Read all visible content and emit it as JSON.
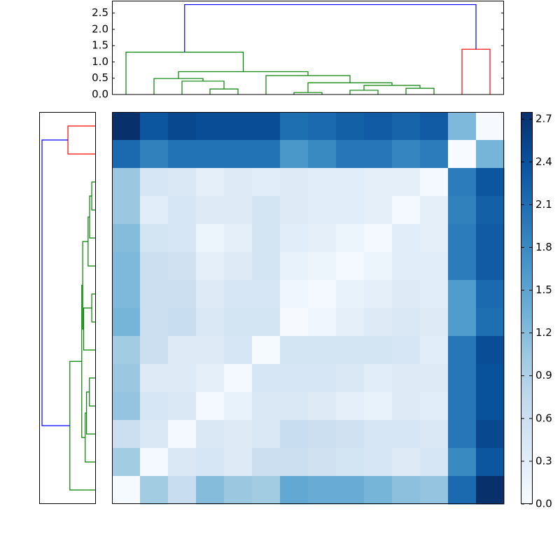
{
  "chart_data": {
    "type": "clustermap",
    "heatmap": {
      "colormap": "Blues",
      "vlim": [
        0,
        2.75
      ],
      "values": [
        [
          2.75,
          2.35,
          2.5,
          2.45,
          2.45,
          2.45,
          2.1,
          2.15,
          2.25,
          2.3,
          2.2,
          2.3,
          1.25,
          0.02
        ],
        [
          2.15,
          1.9,
          2.05,
          2.05,
          2.05,
          2.05,
          1.65,
          1.8,
          2.0,
          2.0,
          1.85,
          1.95,
          0.0,
          1.3
        ],
        [
          1.05,
          0.45,
          0.4,
          0.25,
          0.35,
          0.3,
          0.35,
          0.3,
          0.3,
          0.25,
          0.25,
          0.05,
          1.95,
          2.35
        ],
        [
          1.05,
          0.3,
          0.45,
          0.35,
          0.35,
          0.5,
          0.35,
          0.3,
          0.3,
          0.25,
          0.05,
          0.25,
          1.9,
          2.25
        ],
        [
          1.2,
          0.5,
          0.45,
          0.15,
          0.25,
          0.5,
          0.3,
          0.25,
          0.15,
          0.05,
          0.3,
          0.25,
          1.95,
          2.3
        ],
        [
          1.25,
          0.6,
          0.55,
          0.25,
          0.35,
          0.5,
          0.2,
          0.15,
          0.05,
          0.15,
          0.3,
          0.3,
          1.95,
          2.3
        ],
        [
          1.25,
          0.6,
          0.6,
          0.35,
          0.45,
          0.45,
          0.1,
          0.05,
          0.2,
          0.25,
          0.35,
          0.3,
          1.6,
          2.15
        ],
        [
          1.3,
          0.6,
          0.65,
          0.4,
          0.5,
          0.5,
          0.02,
          0.1,
          0.25,
          0.35,
          0.4,
          0.35,
          1.6,
          2.1
        ],
        [
          1.0,
          0.6,
          0.35,
          0.35,
          0.45,
          0.03,
          0.5,
          0.5,
          0.5,
          0.5,
          0.45,
          0.3,
          2.0,
          2.45
        ],
        [
          1.05,
          0.35,
          0.35,
          0.25,
          0.05,
          0.45,
          0.45,
          0.45,
          0.4,
          0.3,
          0.35,
          0.35,
          2.0,
          2.4
        ],
        [
          1.1,
          0.45,
          0.4,
          0.05,
          0.2,
          0.4,
          0.4,
          0.35,
          0.25,
          0.2,
          0.35,
          0.3,
          2.0,
          2.4
        ],
        [
          0.6,
          0.4,
          0.05,
          0.4,
          0.35,
          0.4,
          0.65,
          0.6,
          0.55,
          0.45,
          0.45,
          0.4,
          2.0,
          2.5
        ],
        [
          1.0,
          0.05,
          0.4,
          0.45,
          0.35,
          0.6,
          0.6,
          0.55,
          0.5,
          0.45,
          0.35,
          0.45,
          1.8,
          2.35
        ],
        [
          0.03,
          1.0,
          0.65,
          1.2,
          1.05,
          1.0,
          1.45,
          1.4,
          1.4,
          1.3,
          1.15,
          1.1,
          2.15,
          2.75
        ]
      ]
    },
    "colorbar": {
      "ticks": [
        {
          "value": 0,
          "label": "0.0"
        },
        0.3,
        0.6,
        0.9,
        1.2,
        1.5,
        1.8,
        2.1,
        2.4,
        2.7
      ]
    },
    "top_dendrogram": {
      "xlim": [
        0,
        140
      ],
      "ylim": [
        0,
        2.88
      ],
      "yticks": [
        {
          "value": 0,
          "label": "0.0"
        },
        0.5,
        {
          "value": 1,
          "label": "1.0"
        },
        1.5,
        {
          "value": 2,
          "label": "2.0"
        },
        2.5
      ],
      "links": [
        {
          "x": [
            35,
            35,
            45,
            45
          ],
          "y": [
            0,
            0.17,
            0.17,
            0
          ],
          "color": "#008000"
        },
        {
          "x": [
            25,
            25,
            40,
            40
          ],
          "y": [
            0,
            0.41,
            0.41,
            0.17
          ],
          "color": "#008000"
        },
        {
          "x": [
            15,
            15,
            32.5,
            32.5
          ],
          "y": [
            0,
            0.49,
            0.49,
            0.41
          ],
          "color": "#008000"
        },
        {
          "x": [
            65,
            65,
            75,
            75
          ],
          "y": [
            0,
            0.06,
            0.06,
            0
          ],
          "color": "#008000"
        },
        {
          "x": [
            85,
            85,
            95,
            95
          ],
          "y": [
            0,
            0.13,
            0.13,
            0
          ],
          "color": "#008000"
        },
        {
          "x": [
            105,
            105,
            115,
            115
          ],
          "y": [
            0,
            0.19,
            0.19,
            0
          ],
          "color": "#008000"
        },
        {
          "x": [
            90,
            90,
            110,
            110
          ],
          "y": [
            0.13,
            0.28,
            0.28,
            0.19
          ],
          "color": "#008000"
        },
        {
          "x": [
            70,
            70,
            100,
            100
          ],
          "y": [
            0.06,
            0.36,
            0.36,
            0.28
          ],
          "color": "#008000"
        },
        {
          "x": [
            55,
            55,
            85,
            85
          ],
          "y": [
            0,
            0.58,
            0.58,
            0.36
          ],
          "color": "#008000"
        },
        {
          "x": [
            23.75,
            23.75,
            70,
            70
          ],
          "y": [
            0.49,
            0.7,
            0.7,
            0.58
          ],
          "color": "#008000"
        },
        {
          "x": [
            5,
            5,
            46.875,
            46.875
          ],
          "y": [
            0,
            1.3,
            1.3,
            0.7
          ],
          "color": "#008000"
        },
        {
          "x": [
            125,
            125,
            135,
            135
          ],
          "y": [
            0,
            1.39,
            1.39,
            0
          ],
          "color": "#ff0000"
        },
        {
          "x": [
            25.94,
            25.94,
            130,
            130
          ],
          "y": [
            1.3,
            2.76,
            2.76,
            1.39
          ],
          "color": "#0000ff"
        }
      ]
    },
    "left_dendrogram": {
      "xlim": [
        0,
        2.88
      ],
      "ylim": [
        0,
        140
      ],
      "links": [
        {
          "x": [
            0,
            1.42,
            1.42,
            0
          ],
          "y": [
            5,
            5,
            15,
            15
          ],
          "color": "#ff0000"
        },
        {
          "x": [
            0,
            0.18,
            0.18,
            0
          ],
          "y": [
            25,
            25,
            35,
            35
          ],
          "color": "#008000"
        },
        {
          "x": [
            0.18,
            0.29,
            0.29,
            0
          ],
          "y": [
            30,
            30,
            45,
            45
          ],
          "color": "#008000"
        },
        {
          "x": [
            0.29,
            0.37,
            0.37,
            0
          ],
          "y": [
            37.5,
            37.5,
            55,
            55
          ],
          "color": "#008000"
        },
        {
          "x": [
            0,
            0.18,
            0.18,
            0
          ],
          "y": [
            65,
            65,
            75,
            75
          ],
          "color": "#008000"
        },
        {
          "x": [
            0.18,
            0.6,
            0.6,
            0
          ],
          "y": [
            70,
            70,
            85,
            85
          ],
          "color": "#008000"
        },
        {
          "x": [
            0.37,
            0.65,
            0.65,
            0.6
          ],
          "y": [
            46.25,
            46.25,
            77.5,
            77.5
          ],
          "color": "#008000"
        },
        {
          "x": [
            0,
            0.3,
            0.3,
            0
          ],
          "y": [
            95,
            95,
            105,
            105
          ],
          "color": "#008000"
        },
        {
          "x": [
            0.3,
            0.45,
            0.45,
            0
          ],
          "y": [
            100,
            100,
            115,
            115
          ],
          "color": "#008000"
        },
        {
          "x": [
            0.45,
            0.52,
            0.52,
            0
          ],
          "y": [
            107.5,
            107.5,
            125,
            125
          ],
          "color": "#008000"
        },
        {
          "x": [
            0.65,
            0.7,
            0.7,
            0.52
          ],
          "y": [
            61.875,
            61.875,
            116.25,
            116.25
          ],
          "color": "#008000"
        },
        {
          "x": [
            0.7,
            1.32,
            1.32,
            0
          ],
          "y": [
            89.06,
            89.06,
            135,
            135
          ],
          "color": "#008000"
        },
        {
          "x": [
            1.42,
            2.77,
            2.77,
            1.32
          ],
          "y": [
            10,
            10,
            112.03,
            112.03
          ],
          "color": "#0000ff"
        }
      ]
    }
  }
}
